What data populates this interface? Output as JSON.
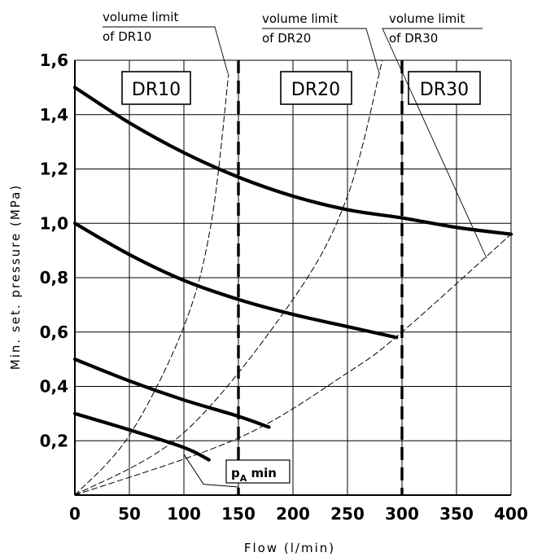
{
  "chart_data": {
    "type": "line",
    "xlabel": "Flow (l/min)",
    "ylabel": "Min. set. pressure (MPa)",
    "xlim": [
      0,
      400
    ],
    "ylim": [
      0,
      1.6
    ],
    "grid": true,
    "x_ticks": [
      "0",
      "50",
      "100",
      "150",
      "200",
      "250",
      "300",
      "350",
      "400"
    ],
    "y_ticks": [
      "0,2",
      "0,4",
      "0,6",
      "0,8",
      "1,0",
      "1,2",
      "1,4",
      "1,6"
    ],
    "series": [
      {
        "style": "thick",
        "points": [
          [
            0,
            1.5
          ],
          [
            50,
            1.37
          ],
          [
            100,
            1.26
          ],
          [
            150,
            1.17
          ],
          [
            200,
            1.1
          ],
          [
            250,
            1.05
          ],
          [
            300,
            1.02
          ],
          [
            350,
            0.985
          ],
          [
            400,
            0.96
          ]
        ]
      },
      {
        "style": "thick",
        "points": [
          [
            0,
            1.0
          ],
          [
            50,
            0.885
          ],
          [
            100,
            0.79
          ],
          [
            150,
            0.72
          ],
          [
            200,
            0.665
          ],
          [
            250,
            0.62
          ],
          [
            295,
            0.58
          ]
        ]
      },
      {
        "style": "thick",
        "points": [
          [
            0,
            0.5
          ],
          [
            50,
            0.42
          ],
          [
            100,
            0.35
          ],
          [
            150,
            0.29
          ],
          [
            178,
            0.25
          ]
        ]
      },
      {
        "style": "thick",
        "points": [
          [
            0,
            0.3
          ],
          [
            50,
            0.24
          ],
          [
            100,
            0.175
          ],
          [
            123,
            0.13
          ]
        ]
      },
      {
        "name": "volume limit of DR10",
        "style": "dashed",
        "points": [
          [
            0,
            0
          ],
          [
            50,
            0.22
          ],
          [
            100,
            0.62
          ],
          [
            125,
            1.0
          ],
          [
            141,
            1.55
          ]
        ]
      },
      {
        "name": "volume limit of DR20",
        "style": "dashed",
        "points": [
          [
            0,
            0
          ],
          [
            100,
            0.23
          ],
          [
            200,
            0.72
          ],
          [
            250,
            1.1
          ],
          [
            282,
            1.6
          ]
        ]
      },
      {
        "name": "volume limit of DR30",
        "style": "dashed",
        "points": [
          [
            0,
            0
          ],
          [
            150,
            0.21
          ],
          [
            250,
            0.45
          ],
          [
            300,
            0.6
          ],
          [
            400,
            0.96
          ]
        ]
      },
      {
        "name": "p_A min",
        "style": "thin",
        "points": [
          [
            100,
            0.15
          ],
          [
            118,
            0.04
          ],
          [
            150,
            0.03
          ]
        ]
      }
    ],
    "region_lines": [
      150,
      300
    ],
    "region_labels": [
      "DR10",
      "DR20",
      "DR30"
    ],
    "annotations": {
      "limit_line1": "volume limit",
      "limit_dr10": "of DR10",
      "limit_dr20": "of DR20",
      "limit_dr30": "of DR30",
      "pa_main": "p",
      "pa_sub": "A",
      "pa_rest": " min"
    }
  }
}
